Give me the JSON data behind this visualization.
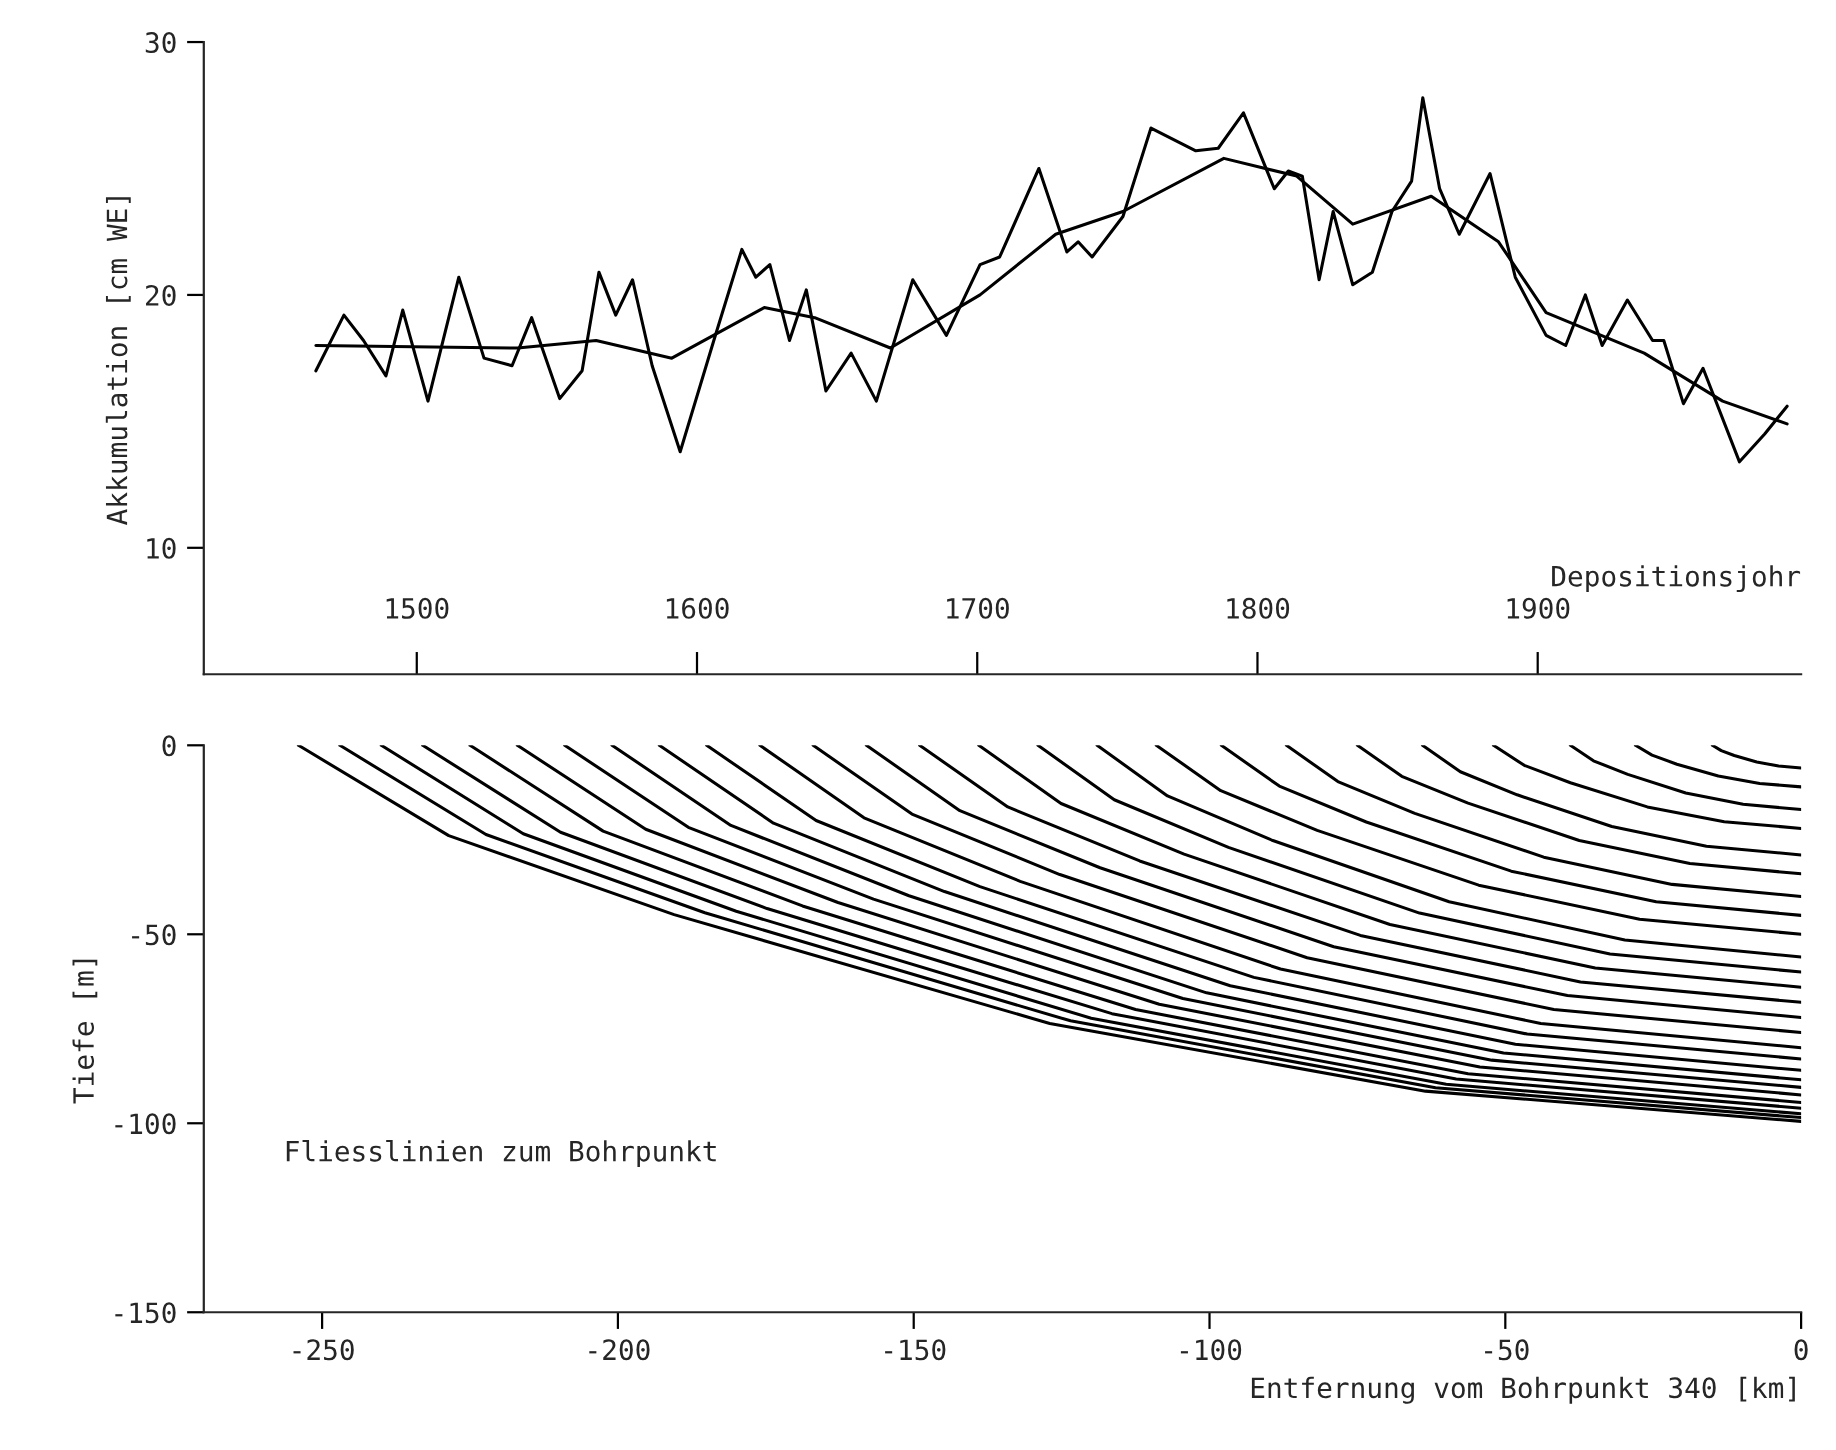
{
  "chart_data": [
    {
      "type": "line",
      "xlabel": "Depositionsjohr",
      "ylabel": "Akkumulation [cm WE]",
      "xlim": [
        1424,
        1994
      ],
      "ylim": [
        5,
        30
      ],
      "yticks": [
        10,
        20,
        30
      ],
      "xticks": [
        1500,
        1600,
        1700,
        1800,
        1900
      ],
      "grid": false,
      "legend": false,
      "series": [
        {
          "color": "#000000",
          "x": [
            1464,
            1474,
            1481,
            1489,
            1495,
            1504,
            1515,
            1524,
            1534,
            1541,
            1551,
            1559,
            1565,
            1571,
            1577,
            1584,
            1594,
            1606,
            1616,
            1621,
            1626,
            1633,
            1639,
            1646,
            1655,
            1664,
            1677,
            1689,
            1701,
            1708,
            1722,
            1732,
            1736,
            1741,
            1752,
            1762,
            1778,
            1786,
            1795,
            1806,
            1811,
            1816,
            1822,
            1827,
            1834,
            1841,
            1848,
            1855,
            1859,
            1865,
            1872,
            1883,
            1892,
            1903,
            1910,
            1917,
            1923,
            1932,
            1941,
            1945,
            1952,
            1959,
            1972,
            1981,
            1989
          ],
          "values": [
            17.0,
            19.2,
            18.2,
            16.8,
            19.4,
            15.8,
            20.7,
            17.5,
            17.2,
            19.1,
            15.9,
            17.0,
            20.9,
            19.2,
            20.6,
            17.2,
            13.8,
            18.2,
            21.8,
            20.7,
            21.2,
            18.2,
            20.2,
            16.2,
            17.7,
            15.8,
            20.6,
            18.4,
            21.2,
            21.5,
            25.0,
            21.7,
            22.1,
            21.5,
            23.1,
            26.6,
            25.7,
            25.8,
            27.2,
            24.2,
            24.9,
            24.7,
            20.6,
            23.3,
            20.4,
            20.9,
            23.3,
            24.5,
            27.8,
            24.2,
            22.4,
            24.8,
            20.7,
            18.4,
            18.0,
            20.0,
            18.0,
            19.8,
            18.2,
            18.2,
            15.7,
            17.1,
            13.4,
            14.5,
            15.6
          ]
        },
        {
          "color": "#000000",
          "x": [
            1464,
            1536,
            1564,
            1591,
            1624,
            1642,
            1669,
            1701,
            1728,
            1752,
            1788,
            1814,
            1834,
            1862,
            1886,
            1903,
            1938,
            1966,
            1989
          ],
          "values": [
            18.0,
            17.9,
            18.2,
            17.5,
            19.5,
            19.1,
            17.9,
            20.0,
            22.4,
            23.3,
            25.4,
            24.7,
            22.8,
            23.9,
            22.1,
            19.3,
            17.7,
            15.8,
            14.9
          ]
        }
      ]
    },
    {
      "type": "line",
      "xlabel": "Entfernung vom Bohrpunkt 340 [km]",
      "ylabel": "Tiefe [m]",
      "xlim": [
        -270,
        0
      ],
      "ylim": [
        -150,
        0
      ],
      "xticks": [
        {
          "value": -250,
          "label": "-250"
        },
        {
          "value": -200,
          "label": "-200"
        },
        {
          "value": -150,
          "label": "-150"
        },
        {
          "value": -100,
          "label": "-100"
        },
        {
          "value": -50,
          "label": "-50"
        },
        {
          "value": 0,
          "label": "0"
        }
      ],
      "yticks": [
        {
          "value": -150,
          "label": "-150"
        },
        {
          "value": -100,
          "label": "-100"
        },
        {
          "value": -50,
          "label": "-50"
        },
        {
          "value": 0,
          "label": "0"
        }
      ],
      "grid": false,
      "legend": false,
      "annotations": [
        "Fliesslinien zum Bohrpunkt"
      ],
      "series": [
        {
          "color": "#000000",
          "x": [
            -254,
            -228.6,
            -190.5,
            -127,
            -63.5,
            0
          ],
          "values": [
            0,
            -23.9,
            -44.8,
            -73.6,
            -91.5,
            -99.5
          ]
        },
        {
          "color": "#000000",
          "x": [
            -247,
            -222.3,
            -185.3,
            -123.5,
            -61.8,
            0
          ],
          "values": [
            0,
            -23.6,
            -44.3,
            -72.9,
            -90.6,
            -98.5
          ]
        },
        {
          "color": "#000000",
          "x": [
            -240,
            -216,
            -180,
            -120,
            -60,
            0
          ],
          "values": [
            0,
            -23.4,
            -43.9,
            -72.2,
            -89.7,
            -97.5
          ]
        },
        {
          "color": "#000000",
          "x": [
            -233,
            -209.7,
            -174.8,
            -116.5,
            -58.3,
            0
          ],
          "values": [
            0,
            -23,
            -43.2,
            -71,
            -88.3,
            -96
          ]
        },
        {
          "color": "#000000",
          "x": [
            -225,
            -202.5,
            -168.8,
            -112.5,
            -56.3,
            0
          ],
          "values": [
            0,
            -22.7,
            -42.5,
            -69.9,
            -86.9,
            -94.5
          ]
        },
        {
          "color": "#000000",
          "x": [
            -217,
            -195.3,
            -162.8,
            -108.5,
            -54.3,
            0
          ],
          "values": [
            0,
            -22.2,
            -41.6,
            -68.5,
            -85.1,
            -92.5
          ]
        },
        {
          "color": "#000000",
          "x": [
            -209,
            -188.1,
            -156.8,
            -104.5,
            -52.3,
            0
          ],
          "values": [
            0,
            -21.7,
            -40.7,
            -67,
            -83.3,
            -90.5
          ]
        },
        {
          "color": "#000000",
          "x": [
            -201,
            -180.9,
            -150.8,
            -100.5,
            -50.3,
            0
          ],
          "values": [
            0,
            -21.2,
            -39.8,
            -65.5,
            -81.4,
            -88.5
          ]
        },
        {
          "color": "#000000",
          "x": [
            -193,
            -173.7,
            -144.8,
            -96.5,
            -48.3,
            0
          ],
          "values": [
            0,
            -20.6,
            -38.7,
            -63.6,
            -79.1,
            -86
          ]
        },
        {
          "color": "#000000",
          "x": [
            -185,
            -166.5,
            -138.8,
            -92.5,
            -46.3,
            0
          ],
          "values": [
            0,
            -19.9,
            -37.4,
            -61.4,
            -76.4,
            -83
          ]
        },
        {
          "color": "#000000",
          "x": [
            -176,
            -158.4,
            -132,
            -88,
            -44,
            0
          ],
          "values": [
            0,
            -19.2,
            -36,
            -59.2,
            -73.6,
            -80
          ]
        },
        {
          "color": "#000000",
          "x": [
            -167,
            -150.3,
            -125.3,
            -83.5,
            -41.8,
            0
          ],
          "values": [
            0,
            -18.2,
            -34.2,
            -56.2,
            -69.9,
            -76
          ]
        },
        {
          "color": "#000000",
          "x": [
            -158,
            -142.2,
            -118.5,
            -79,
            -39.5,
            0
          ],
          "values": [
            0,
            -17.3,
            -32.4,
            -53.3,
            -66.2,
            -72
          ]
        },
        {
          "color": "#000000",
          "x": [
            -149,
            -134.1,
            -111.8,
            -74.5,
            -37.3,
            0
          ],
          "values": [
            0,
            -16.3,
            -30.6,
            -50.3,
            -62.6,
            -68
          ]
        },
        {
          "color": "#000000",
          "x": [
            -139,
            -125.1,
            -104.3,
            -69.5,
            -34.8,
            0
          ],
          "values": [
            0,
            -15.4,
            -28.8,
            -47.4,
            -58.9,
            -64
          ]
        },
        {
          "color": "#000000",
          "x": [
            -129,
            -116.1,
            -96.8,
            -64.5,
            -32.3,
            0
          ],
          "values": [
            0,
            -14.4,
            -27,
            -44.4,
            -55.2,
            -60
          ]
        },
        {
          "color": "#000000",
          "x": [
            -119,
            -107.1,
            -89.3,
            -59.5,
            -29.8,
            0
          ],
          "values": [
            0,
            -13.4,
            -25.2,
            -41.4,
            -51.5,
            -56
          ]
        },
        {
          "color": "#000000",
          "x": [
            -109,
            -98.1,
            -81.8,
            -54.5,
            -27.3,
            0
          ],
          "values": [
            0,
            -12,
            -22.5,
            -37,
            -46,
            -50
          ]
        },
        {
          "color": "#000000",
          "x": [
            -98,
            -88.2,
            -73.5,
            -49,
            -24.5,
            0
          ],
          "values": [
            0,
            -10.8,
            -20.3,
            -33.3,
            -41.4,
            -45
          ]
        },
        {
          "color": "#000000",
          "x": [
            -87,
            -78.3,
            -65.3,
            -43.5,
            -21.8,
            0
          ],
          "values": [
            0,
            -9.6,
            -18,
            -29.6,
            -36.8,
            -40
          ]
        },
        {
          "color": "#000000",
          "x": [
            -75,
            -67.5,
            -56.3,
            -37.5,
            -18.8,
            0
          ],
          "values": [
            0,
            -8.2,
            -15.3,
            -25.2,
            -31.3,
            -34
          ]
        },
        {
          "color": "#000000",
          "x": [
            -64,
            -57.6,
            -48,
            -32,
            -16,
            0
          ],
          "values": [
            0,
            -7,
            -13.1,
            -21.5,
            -26.7,
            -29
          ]
        },
        {
          "color": "#000000",
          "x": [
            -52,
            -46.8,
            -39,
            -26,
            -13,
            0
          ],
          "values": [
            0,
            -5.3,
            -9.9,
            -16.3,
            -20.2,
            -22
          ]
        },
        {
          "color": "#000000",
          "x": [
            -39,
            -35.1,
            -29.3,
            -19.5,
            -9.8,
            0
          ],
          "values": [
            0,
            -4.1,
            -7.7,
            -12.6,
            -15.6,
            -17
          ]
        },
        {
          "color": "#000000",
          "x": [
            -28,
            -25.2,
            -21,
            -14,
            -7,
            0
          ],
          "values": [
            0,
            -2.6,
            -5,
            -8.1,
            -10.1,
            -11
          ]
        },
        {
          "color": "#000000",
          "x": [
            -15,
            -13.5,
            -11.3,
            -7.5,
            -3.8,
            0
          ],
          "values": [
            0,
            -1.4,
            -2.7,
            -4.4,
            -5.5,
            -6
          ]
        }
      ]
    }
  ]
}
